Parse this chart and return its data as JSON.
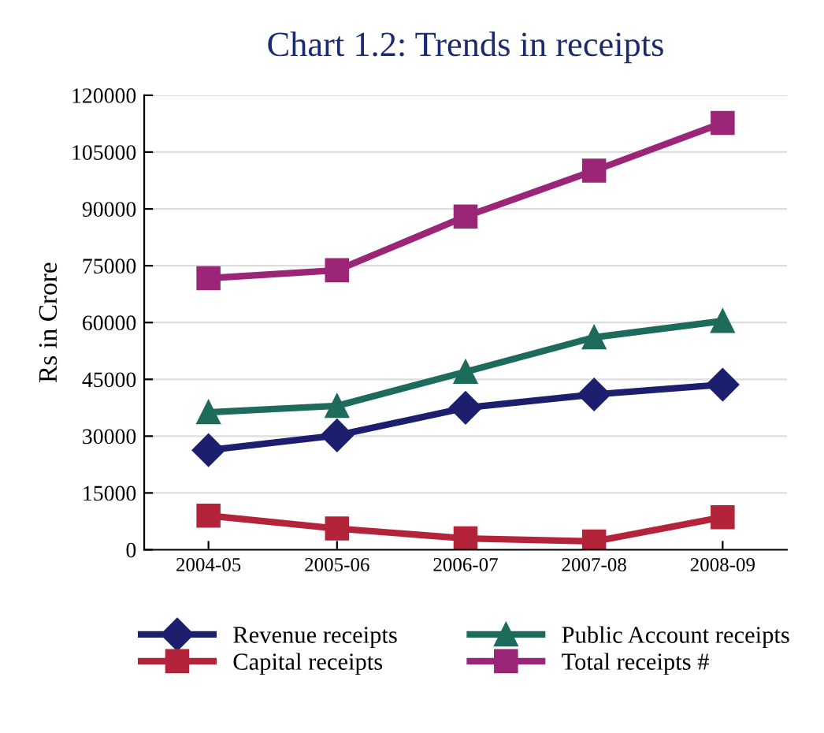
{
  "chart_data": {
    "type": "line",
    "title": "Chart 1.2: Trends in receipts",
    "ylabel": "Rs in Crore",
    "categories": [
      "2004-05",
      "2005-06",
      "2006-07",
      "2007-08",
      "2008-09"
    ],
    "series": [
      {
        "name": "Revenue receipts",
        "color": "#1c1f6e",
        "marker": "diamond",
        "values": [
          26300,
          30200,
          37500,
          41000,
          43600
        ]
      },
      {
        "name": "Capital receipts",
        "color": "#b3243a",
        "marker": "square",
        "values": [
          9000,
          5600,
          3000,
          2200,
          8600
        ]
      },
      {
        "name": "Public Account receipts",
        "color": "#1d6b5a",
        "marker": "triangle",
        "values": [
          36300,
          38000,
          47000,
          56100,
          60400
        ]
      },
      {
        "name": "Total receipts #",
        "color": "#9b2678",
        "marker": "square",
        "values": [
          71700,
          73800,
          88000,
          100100,
          112700
        ]
      }
    ],
    "ylim": [
      0,
      120000
    ],
    "yticks": [
      0,
      15000,
      30000,
      45000,
      60000,
      75000,
      90000,
      105000,
      120000
    ],
    "grid": "y",
    "legend": "bottom",
    "line_style": "solid"
  }
}
